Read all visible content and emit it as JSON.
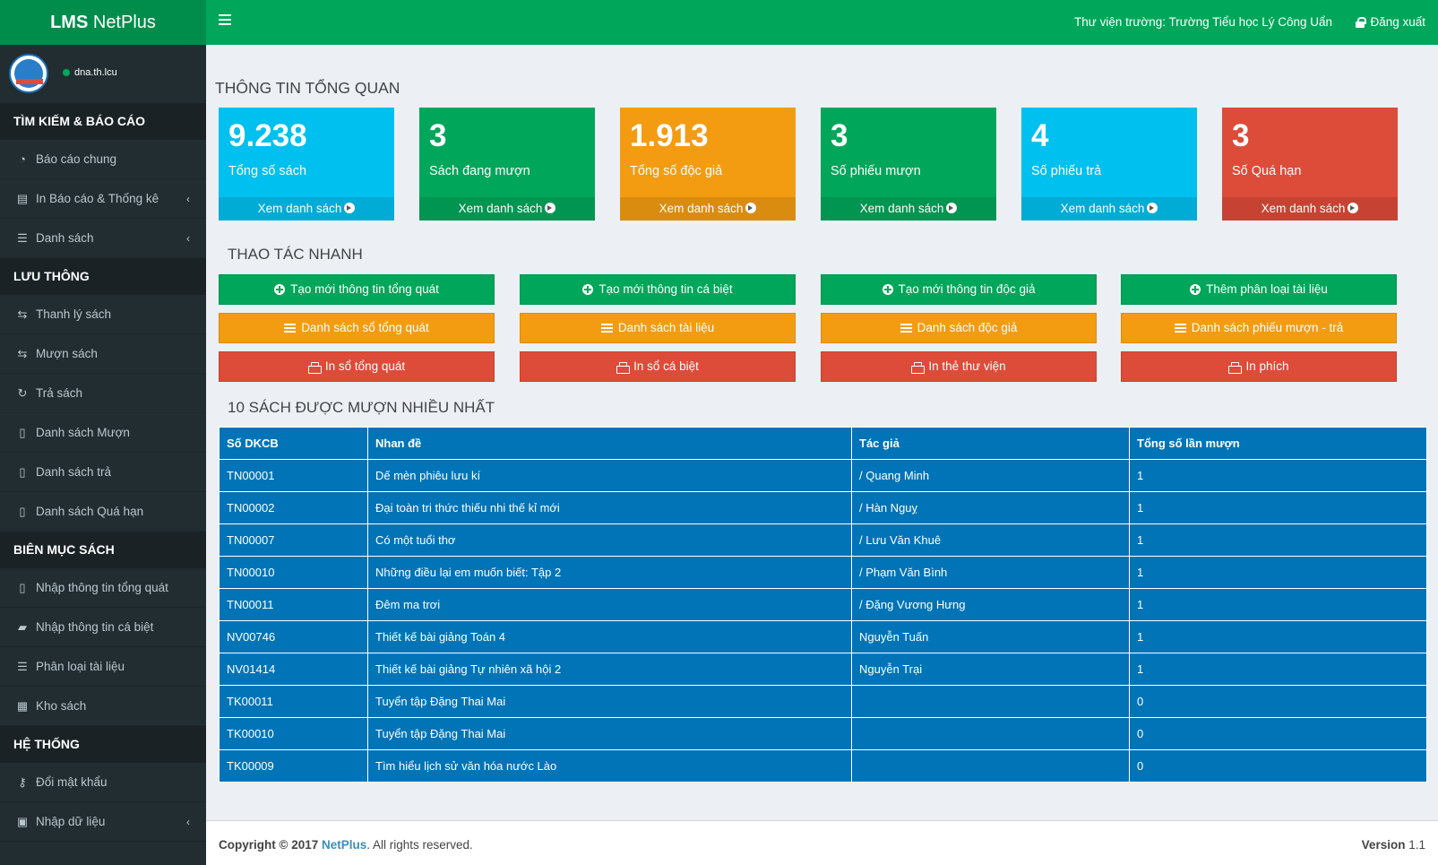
{
  "header": {
    "logo_bold": "LMS",
    "logo_rest": " NetPlus",
    "library": "Thư viện trường: Trường Tiểu học Lý Công Uẩn",
    "logout": "Đăng xuất"
  },
  "sidebar": {
    "user": "dna.th.lcu",
    "sections": [
      {
        "title": "TÌM KIẾM & BÁO CÁO"
      },
      {
        "title": "LƯU THÔNG"
      },
      {
        "title": "BIÊN MỤC SÁCH"
      },
      {
        "title": "HỆ THỐNG"
      }
    ],
    "items": [
      {
        "label": "Báo cáo chung"
      },
      {
        "label": "In Báo cáo & Thống kê"
      },
      {
        "label": "Danh sách"
      },
      {
        "label": "Thanh lý sách"
      },
      {
        "label": "Mượn sách"
      },
      {
        "label": "Trả sách"
      },
      {
        "label": "Danh sách Mượn"
      },
      {
        "label": "Danh sách trả"
      },
      {
        "label": "Danh sách Quá hạn"
      },
      {
        "label": "Nhập thông tin tổng quát"
      },
      {
        "label": "Nhập thông tin cá biệt"
      },
      {
        "label": "Phân loại tài liệu"
      },
      {
        "label": "Kho sách"
      },
      {
        "label": "Đổi mật khẩu"
      },
      {
        "label": "Nhập dữ liệu"
      }
    ]
  },
  "overview": {
    "title": "THÔNG TIN TỔNG QUAN",
    "link_label": "Xem danh sách",
    "boxes": [
      {
        "value": "9.238",
        "label": "Tổng số sách",
        "color": "#00c0ef"
      },
      {
        "value": "3",
        "label": "Sách đang mượn",
        "color": "#00a65a"
      },
      {
        "value": "1.913",
        "label": "Tổng số độc giả",
        "color": "#f39c12"
      },
      {
        "value": "3",
        "label": "Số phiếu mượn",
        "color": "#00a65a"
      },
      {
        "value": "4",
        "label": "Số phiếu trả",
        "color": "#00c0ef"
      },
      {
        "value": "3",
        "label": "Số Quá hạn",
        "color": "#dd4b39"
      }
    ]
  },
  "quick": {
    "title": "THAO TÁC NHANH",
    "buttons": [
      {
        "label": "Tạo mới thông tin tổng quát"
      },
      {
        "label": "Tạo mới thông tin cá biệt"
      },
      {
        "label": "Tạo mới thông tin độc giả"
      },
      {
        "label": "Thêm phân loại tài liệu"
      },
      {
        "label": "Danh sách sổ tổng quát"
      },
      {
        "label": "Danh sách tài liệu"
      },
      {
        "label": "Danh sách độc giả"
      },
      {
        "label": "Danh sách phiếu mượn - trả"
      },
      {
        "label": "In sổ tổng quát"
      },
      {
        "label": "In sổ cá biệt"
      },
      {
        "label": "In thẻ thư viện"
      },
      {
        "label": "In phích"
      }
    ]
  },
  "top10": {
    "title": "10 SÁCH ĐƯỢC MƯỢN NHIỀU NHẤT",
    "columns": [
      "Số DKCB",
      "Nhan đề",
      "Tác giả",
      "Tổng số lần mượn"
    ],
    "rows": [
      [
        "TN00001",
        "Dế mèn phiêu lưu kí",
        "/ Quang Minh",
        "1"
      ],
      [
        "TN00002",
        "Đại toàn tri thức thiếu nhi thế kỉ mới",
        "/ Hàn Nguỵ",
        "1"
      ],
      [
        "TN00007",
        "Có một tuổi thơ",
        "/ Lưu Văn Khuê",
        "1"
      ],
      [
        "TN00010",
        "Những điều lại em muốn biết: Tập 2",
        "/ Phạm Văn Bình",
        "1"
      ],
      [
        "TN00011",
        "Đêm ma trơi",
        "/ Đặng Vương Hưng",
        "1"
      ],
      [
        "NV00746",
        "Thiết kế bài giảng Toán 4",
        "Nguyễn Tuấn",
        "1"
      ],
      [
        "NV01414",
        "Thiết kế bài giảng Tự nhiên xã hội 2",
        "Nguyễn Trại",
        "1"
      ],
      [
        "TK00011",
        "Tuyển tập Đặng Thai Mai",
        "",
        "0"
      ],
      [
        "TK00010",
        "Tuyển tập Đặng Thai Mai",
        "",
        "0"
      ],
      [
        "TK00009",
        "Tìm hiểu lịch sử văn hóa nước Lào",
        "",
        "0"
      ]
    ]
  },
  "footer": {
    "copy_prefix": "Copyright © 2017 ",
    "brand": "NetPlus",
    "copy_suffix": ". All rights reserved.",
    "version_label": "Version",
    "version": "1.1"
  }
}
